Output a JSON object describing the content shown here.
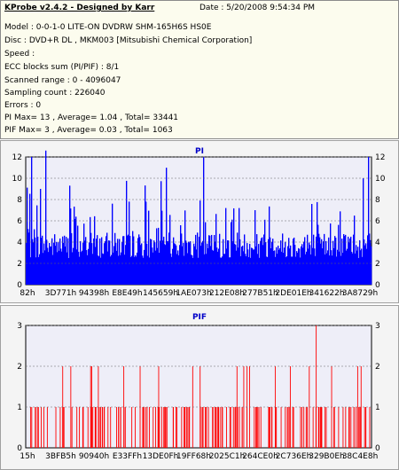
{
  "header": {
    "title": "KProbe v2.4.2 - Designed by Karr",
    "date": "Date : 5/20/2008 9:54:34 PM",
    "lines": [
      "Model : 0-0-1-0 LITE-ON DVDRW SHM-165H6S HS0E",
      "Disc : DVD+R DL , MKM003 [Mitsubishi Chemical Corporation]",
      "Speed :",
      "ECC blocks sum (PI/PIF) : 8/1",
      "Scanned range : 0 - 4096047",
      "Sampling count : 226040",
      "Errors : 0",
      "PI Max= 13 , Average= 1.04 , Total= 33441",
      "PIF Max= 3 , Average= 0.03 , Total= 1063"
    ]
  },
  "colors": {
    "pi": "#0000ff",
    "pif": "#ff0000",
    "plot_bg": "#eeeef8",
    "grid": "#666666"
  },
  "chart_data": [
    {
      "type": "bar",
      "title": "PI",
      "ylim": [
        0,
        12
      ],
      "y_ticks": [
        "0",
        "2",
        "4",
        "6",
        "8",
        "10",
        "12"
      ],
      "x_ticks": [
        "82h",
        "3D771h",
        "94398h",
        "E8E49h",
        "145659h",
        "1AE073h",
        "212E08h",
        "277B51h",
        "2DE01Eh",
        "341622h",
        "3A8729h"
      ],
      "max": 13,
      "average": 1.04,
      "total": 33441,
      "grid": true
    },
    {
      "type": "bar",
      "title": "PIF",
      "ylim": [
        0,
        3
      ],
      "y_ticks": [
        "0",
        "1",
        "2",
        "3"
      ],
      "x_ticks": [
        "15h",
        "3BFB5h",
        "90940h",
        "E33FFh",
        "13DE0Fh",
        "19FF68h",
        "2025C1h",
        "264CE0h",
        "2C736Eh",
        "329B0Eh",
        "38C4E8h"
      ],
      "max": 3,
      "average": 0.03,
      "total": 1063,
      "grid": true
    }
  ]
}
